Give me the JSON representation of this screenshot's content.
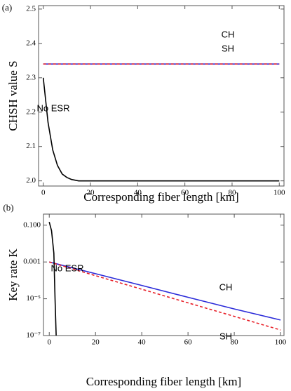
{
  "chart_data": [
    {
      "type": "line",
      "label": "(a)",
      "xlabel": "Corresponding fiber length [km]",
      "ylabel": "CHSH value S",
      "xlim": [
        -2,
        102
      ],
      "xticks": [
        0,
        20,
        40,
        60,
        80,
        100
      ],
      "ylim": [
        1.985,
        2.51
      ],
      "yticks": [
        {
          "value": 2,
          "label": "2.0"
        },
        2.1,
        2.2,
        2.3,
        2.4,
        {
          "value": 2.5,
          "label": "2.5"
        }
      ],
      "series": [
        {
          "name": "CH",
          "color": "#2b2bd9",
          "x": [
            0,
            100
          ],
          "values": [
            2.34,
            2.34
          ]
        },
        {
          "name": "SH",
          "color": "#e8212a",
          "dashed": true,
          "x": [
            0,
            100
          ],
          "values": [
            2.34,
            2.34
          ]
        },
        {
          "name": "No ESR",
          "color": "#000000",
          "x": [
            0,
            2,
            4,
            6,
            8,
            10,
            12,
            15,
            20,
            100
          ],
          "values": [
            2.3,
            2.17,
            2.09,
            2.045,
            2.02,
            2.01,
            2.004,
            2.0,
            2.0,
            2.0
          ]
        }
      ]
    },
    {
      "type": "line",
      "label": "(b)",
      "xlabel": "Corresponding fiber length [km]",
      "ylabel": "Key rate K",
      "xlim": [
        -2.5,
        101.5
      ],
      "xticks": [
        0,
        20,
        40,
        60,
        80,
        100
      ],
      "yscale": "log",
      "ylim": [
        1e-07,
        0.4
      ],
      "yticks": [
        {
          "value": 0.1,
          "label": "0.100"
        },
        0.001,
        {
          "value": 1e-05,
          "label": "10⁻⁵"
        },
        {
          "value": 1e-07,
          "label": "10⁻⁷"
        }
      ],
      "series": [
        {
          "name": "CH",
          "color": "#2b2bd9",
          "x": [
            0,
            20,
            40,
            60,
            80,
            100
          ],
          "values": [
            0.001,
            0.00023,
            5.3e-05,
            1.2e-05,
            2.8e-06,
            7e-07
          ]
        },
        {
          "name": "SH",
          "color": "#e8212a",
          "dashed": true,
          "x": [
            0,
            20,
            40,
            60,
            80,
            100
          ],
          "values": [
            0.001,
            0.00018,
            3.3e-05,
            6e-06,
            1.1e-06,
            2e-07
          ]
        },
        {
          "name": "No ESR",
          "color": "#000000",
          "x": [
            0,
            1,
            2,
            2.5,
            3
          ],
          "values": [
            0.15,
            0.05,
            0.003,
            1e-05,
            1e-07
          ]
        }
      ]
    }
  ]
}
